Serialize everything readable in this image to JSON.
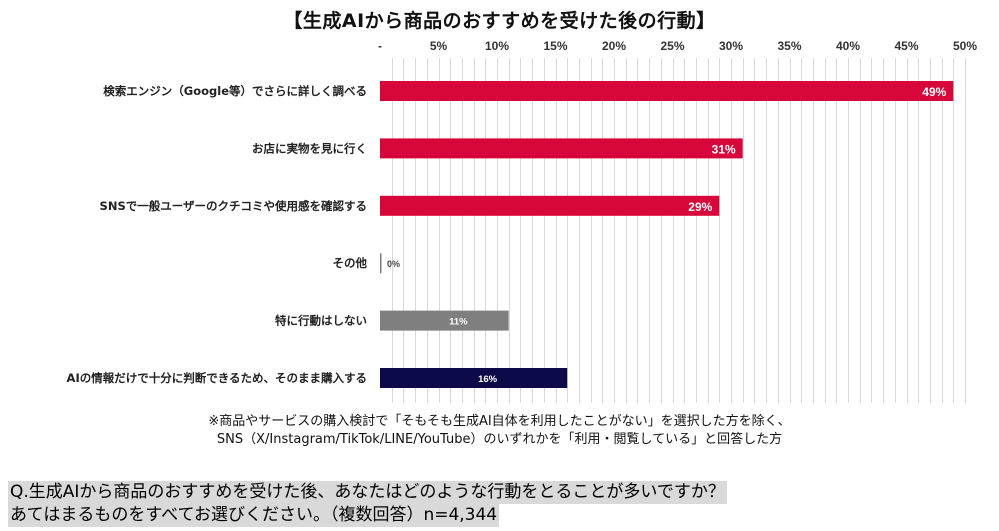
{
  "chart_data": {
    "type": "bar",
    "orientation": "horizontal",
    "title": "【生成AIから商品のおすすめを受けた後の行動】",
    "categories": [
      "検索エンジン（Google等）でさらに詳しく調べる",
      "お店に実物を見に行く",
      "SNSで一般ユーザーのクチコミや使用感を確認する",
      "その他",
      "特に行動はしない",
      "AIの情報だけで十分に判断できるため、そのまま購入する"
    ],
    "values": [
      49,
      31,
      29,
      0,
      11,
      16
    ],
    "data_labels": [
      "49%",
      "31%",
      "29%",
      "0%",
      "11%",
      "16%"
    ],
    "bar_colors": [
      "#d7063b",
      "#d7063b",
      "#d7063b",
      "#7f7f7f",
      "#7f7f7f",
      "#0d0a4a"
    ],
    "x_ticks": [
      "-",
      "5%",
      "10%",
      "15%",
      "20%",
      "25%",
      "30%",
      "35%",
      "40%",
      "45%",
      "50%"
    ],
    "xlim": [
      0,
      50
    ],
    "axis_position": "top",
    "grid": true,
    "legend": false
  },
  "notes": [
    "※商品やサービスの購入検討で「そもそも生成AI自体を利用したことがない」を選択した方を除く、",
    "SNS（X/Instagram/TikTok/LINE/YouTube）のいずれかを「利用・閲覧している」と回答した方"
  ],
  "question": [
    "Q.生成AIから商品のおすすめを受けた後、あなたはどのような行動をとることが多いですか？",
    "あてはまるものをすべてお選びください。（複数回答）n=4,344"
  ]
}
